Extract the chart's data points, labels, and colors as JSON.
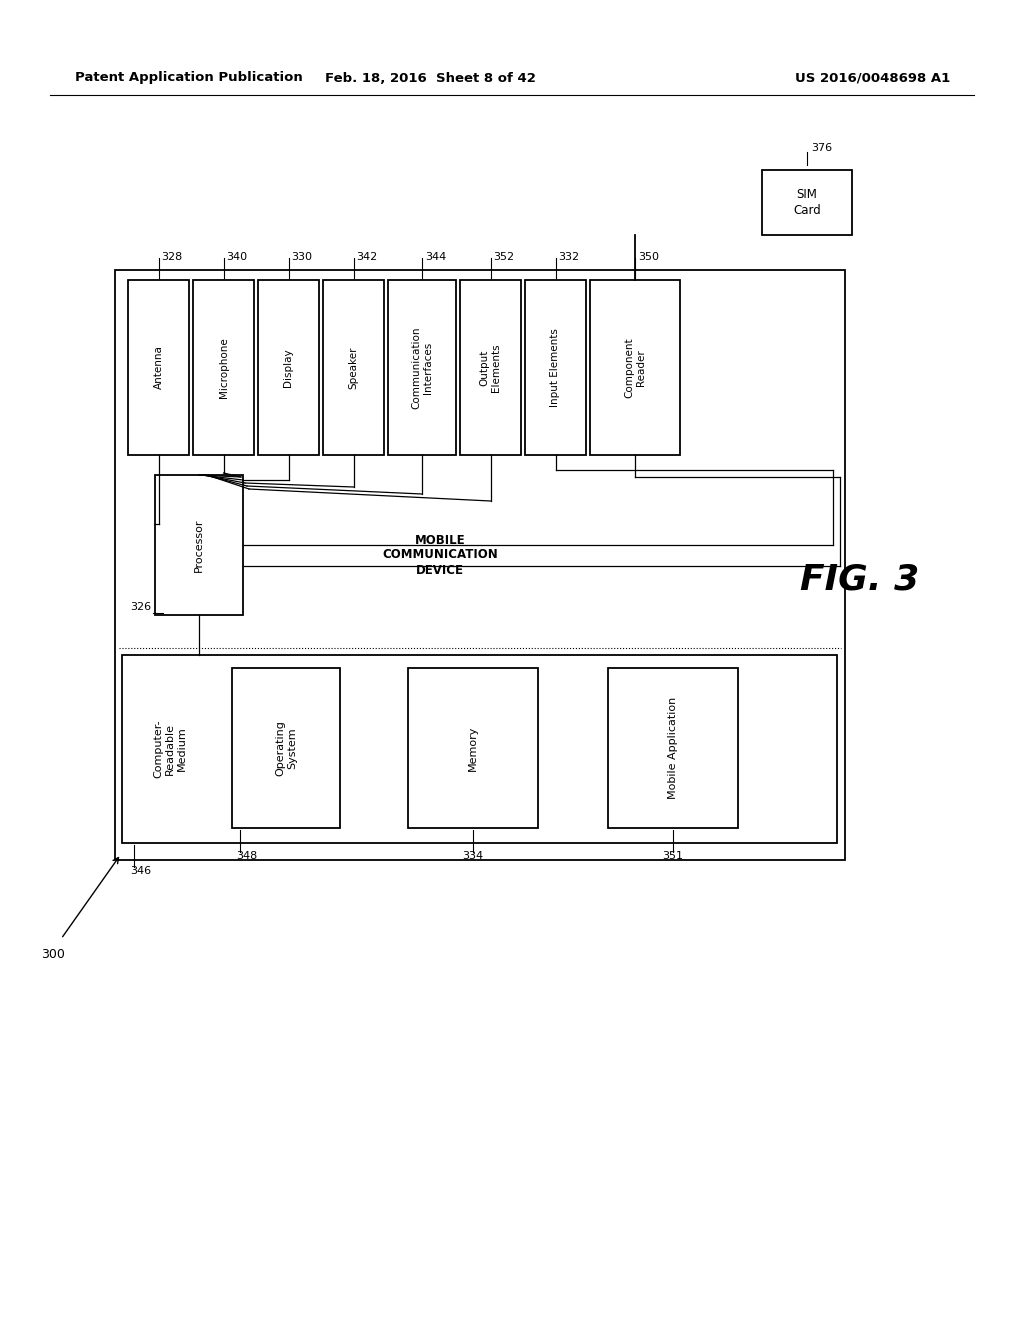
{
  "bg_color": "#ffffff",
  "header_left": "Patent Application Publication",
  "header_mid": "Feb. 18, 2016  Sheet 8 of 42",
  "header_right": "US 2016/0048698 A1",
  "fig_label": "FIG. 3",
  "main_box_label": "300",
  "top_modules": [
    {
      "label": "Antenna",
      "ref": "328"
    },
    {
      "label": "Microphone",
      "ref": "340"
    },
    {
      "label": "Display",
      "ref": "330"
    },
    {
      "label": "Speaker",
      "ref": "342"
    },
    {
      "label": "Communication\nInterfaces",
      "ref": "344"
    },
    {
      "label": "Output\nElements",
      "ref": "352"
    },
    {
      "label": "Input Elements",
      "ref": "332"
    },
    {
      "label": "Component\nReader",
      "ref": "350"
    }
  ],
  "processor_label": "Processor",
  "processor_ref": "326",
  "mobile_device_label": "MOBILE\nCOMMUNICATION\nDEVICE",
  "crm_label": "Computer-\nReadable\nMedium",
  "crm_ref": "346",
  "os_label": "Operating\nSystem",
  "os_ref": "348",
  "memory_label": "Memory",
  "memory_ref": "334",
  "app_label": "Mobile Application",
  "app_ref": "351",
  "sim_label": "SIM\nCard",
  "sim_ref": "376"
}
